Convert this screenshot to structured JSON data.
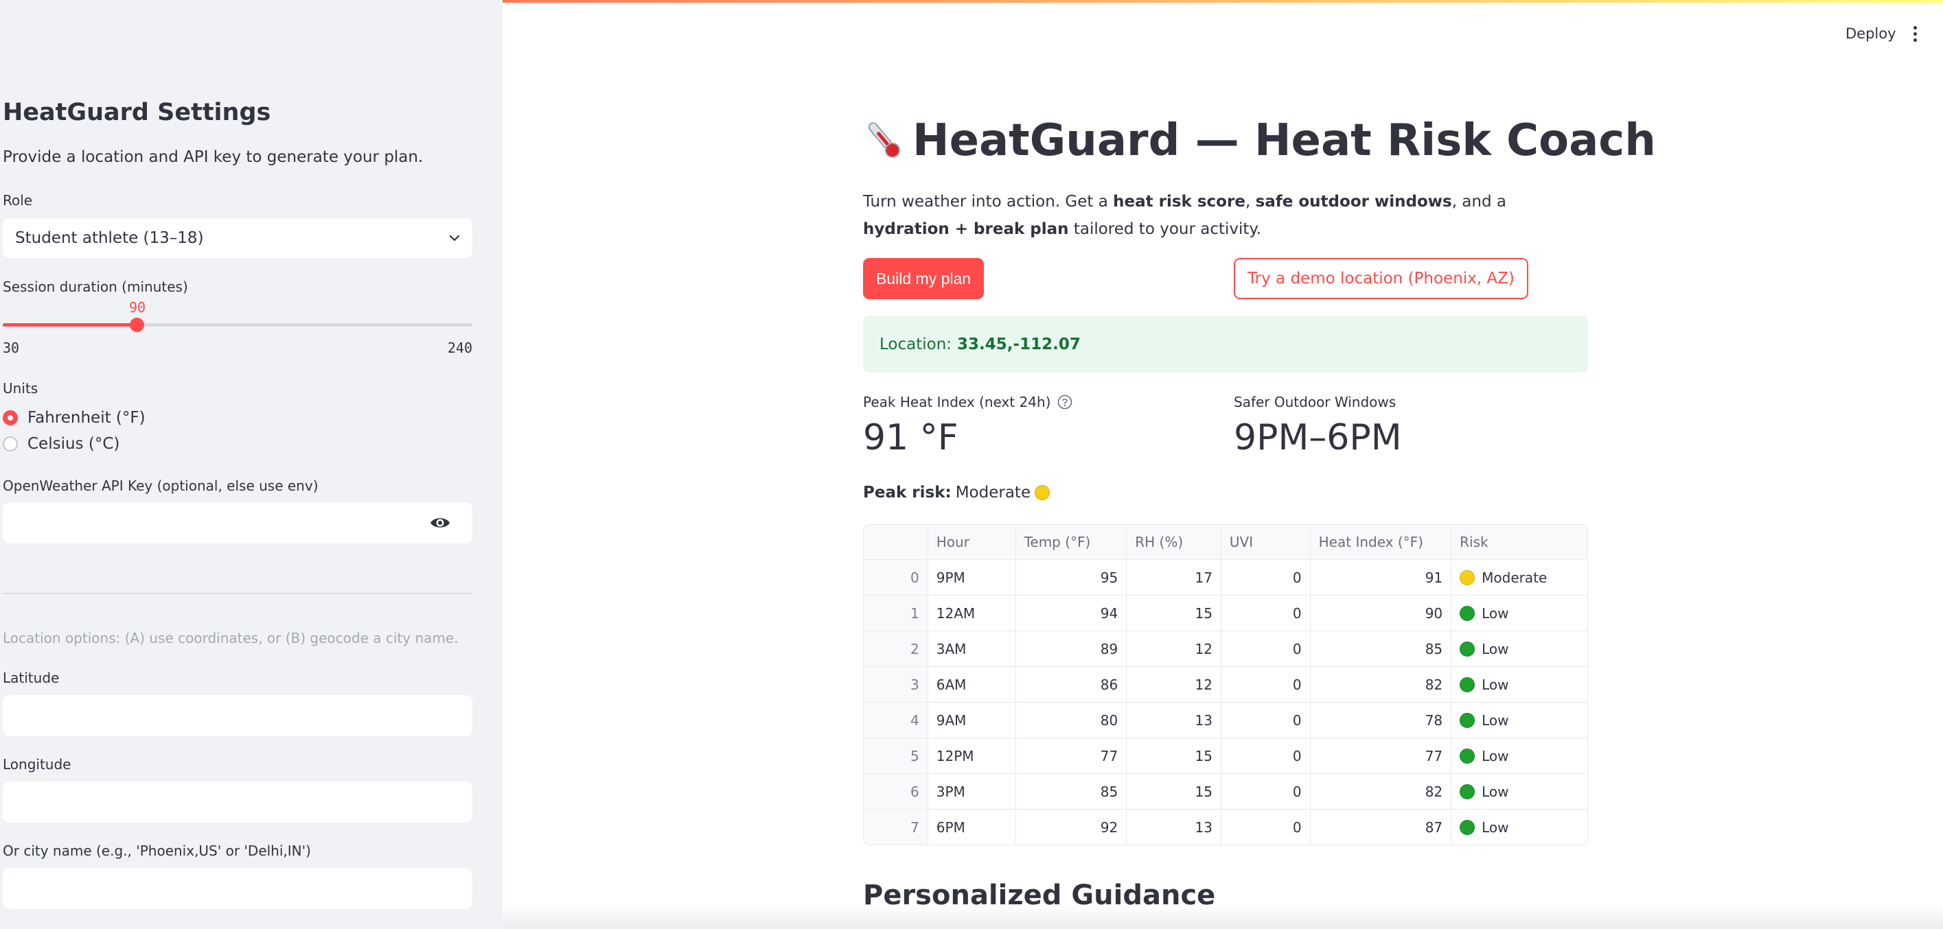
{
  "header": {
    "deploy_label": "Deploy"
  },
  "sidebar": {
    "title": "HeatGuard Settings",
    "subtitle": "Provide a location and API key to generate your plan.",
    "role": {
      "label": "Role",
      "value": "Student athlete (13–18)"
    },
    "session": {
      "label": "Session duration (minutes)",
      "value": "90",
      "min": "30",
      "max": "240",
      "fraction": 0.2857
    },
    "units": {
      "label": "Units",
      "options": [
        "Fahrenheit (°F)",
        "Celsius (°C)"
      ],
      "selected": "Fahrenheit (°F)"
    },
    "api_key": {
      "label": "OpenWeather API Key (optional, else use env)",
      "value": ""
    },
    "location_caption": "Location options: (A) use coordinates, or (B) geocode a city name.",
    "latitude": {
      "label": "Latitude",
      "value": ""
    },
    "longitude": {
      "label": "Longitude",
      "value": ""
    },
    "city": {
      "label": "Or city name (e.g., 'Phoenix,US' or 'Delhi,IN')",
      "value": ""
    }
  },
  "main": {
    "title": "HeatGuard — Heat Risk Coach",
    "intro": {
      "t1": "Turn weather into action. Get a ",
      "b1": "heat risk score",
      "t2": ", ",
      "b2": "safe outdoor windows",
      "t3": ", and a ",
      "b3": "hydration + break plan",
      "t4": " tailored to your activity."
    },
    "build_button": "Build my plan",
    "demo_button": "Try a demo location (Phoenix, AZ)",
    "location": {
      "label": "Location:",
      "value": "33.45,-112.07"
    },
    "metric_heat": {
      "label": "Peak Heat Index (next 24h)",
      "value": "91 °F"
    },
    "metric_windows": {
      "label": "Safer Outdoor Windows",
      "value": "9PM–6PM"
    },
    "peak_risk": {
      "label": "Peak risk:",
      "value": "Moderate"
    },
    "table": {
      "columns": [
        "",
        "Hour",
        "Temp (°F)",
        "RH (%)",
        "UVI",
        "Heat Index (°F)",
        "Risk"
      ],
      "rows": [
        [
          "0",
          "9PM",
          "95",
          "17",
          "0",
          "91",
          "Moderate"
        ],
        [
          "1",
          "12AM",
          "94",
          "15",
          "0",
          "90",
          "Low"
        ],
        [
          "2",
          "3AM",
          "89",
          "12",
          "0",
          "85",
          "Low"
        ],
        [
          "3",
          "6AM",
          "86",
          "12",
          "0",
          "82",
          "Low"
        ],
        [
          "4",
          "9AM",
          "80",
          "13",
          "0",
          "78",
          "Low"
        ],
        [
          "5",
          "12PM",
          "77",
          "15",
          "0",
          "77",
          "Low"
        ],
        [
          "6",
          "3PM",
          "85",
          "15",
          "0",
          "82",
          "Low"
        ],
        [
          "7",
          "6PM",
          "92",
          "13",
          "0",
          "87",
          "Low"
        ]
      ]
    },
    "section_heading": "Personalized Guidance"
  },
  "colors": {
    "accent": "#ff4b4b",
    "moderate": "#f7cd1b",
    "low": "#1fa12e",
    "success_bg": "#e9f8ee",
    "success_text": "#177233"
  },
  "icons": {
    "title": "thermometer-icon",
    "help": "question-circle-icon",
    "eye": "eye-icon",
    "menu": "kebab-menu-icon",
    "dropdown": "chevron-down-icon"
  }
}
